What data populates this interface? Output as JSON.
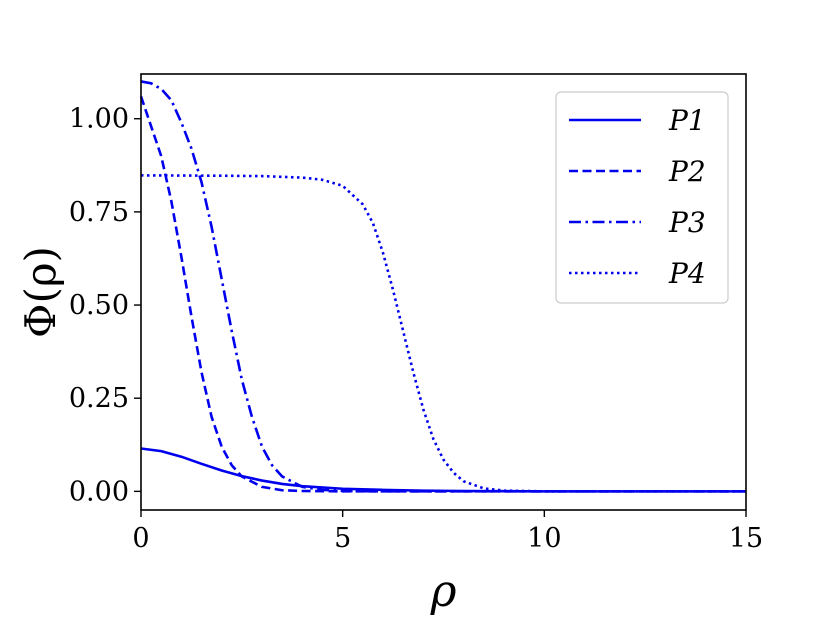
{
  "chart_data": {
    "type": "line",
    "xlabel": "ρ",
    "ylabel": "Φ(ρ)",
    "xlim": [
      0,
      15
    ],
    "ylim": [
      -0.05,
      1.12
    ],
    "x_ticks": [
      0,
      5,
      10,
      15
    ],
    "x_tick_labels": [
      "0",
      "5",
      "10",
      "15"
    ],
    "y_ticks": [
      0.0,
      0.25,
      0.5,
      0.75,
      1.0
    ],
    "y_tick_labels": [
      "0.00",
      "0.25",
      "0.50",
      "0.75",
      "1.00"
    ],
    "grid": false,
    "legend_position": "top-right",
    "line_color": "#0000ee",
    "series": [
      {
        "name": "P1",
        "style": "solid",
        "x": [
          0,
          0.5,
          1,
          1.5,
          2,
          2.5,
          3,
          3.5,
          4,
          5,
          6,
          7,
          8,
          10,
          12,
          15
        ],
        "y": [
          0.115,
          0.108,
          0.093,
          0.074,
          0.056,
          0.041,
          0.029,
          0.02,
          0.014,
          0.007,
          0.004,
          0.002,
          0.001,
          0.0,
          0.0,
          0.0
        ]
      },
      {
        "name": "P2",
        "style": "dashed",
        "x": [
          0,
          0.25,
          0.5,
          0.75,
          1,
          1.25,
          1.5,
          1.75,
          2,
          2.25,
          2.5,
          3,
          3.5,
          4,
          5,
          15
        ],
        "y": [
          1.06,
          0.98,
          0.9,
          0.78,
          0.63,
          0.47,
          0.32,
          0.2,
          0.12,
          0.07,
          0.04,
          0.012,
          0.003,
          0.001,
          0.0,
          0.0
        ]
      },
      {
        "name": "P3",
        "style": "dashdot",
        "x": [
          0,
          0.25,
          0.5,
          0.75,
          1,
          1.25,
          1.5,
          1.75,
          2,
          2.25,
          2.5,
          2.75,
          3,
          3.25,
          3.5,
          4,
          4.5,
          5,
          6,
          15
        ],
        "y": [
          1.1,
          1.095,
          1.08,
          1.05,
          0.99,
          0.92,
          0.83,
          0.71,
          0.57,
          0.43,
          0.3,
          0.2,
          0.12,
          0.07,
          0.04,
          0.012,
          0.004,
          0.001,
          0.0,
          0.0
        ]
      },
      {
        "name": "P4",
        "style": "dotted",
        "x": [
          0,
          2,
          3,
          4,
          4.5,
          5,
          5.5,
          5.75,
          6,
          6.25,
          6.5,
          6.75,
          7,
          7.25,
          7.5,
          7.75,
          8,
          8.5,
          9,
          10,
          15
        ],
        "y": [
          0.848,
          0.847,
          0.846,
          0.842,
          0.836,
          0.82,
          0.77,
          0.72,
          0.64,
          0.54,
          0.43,
          0.32,
          0.22,
          0.14,
          0.085,
          0.05,
          0.027,
          0.008,
          0.002,
          0.0,
          0.0
        ]
      }
    ]
  }
}
